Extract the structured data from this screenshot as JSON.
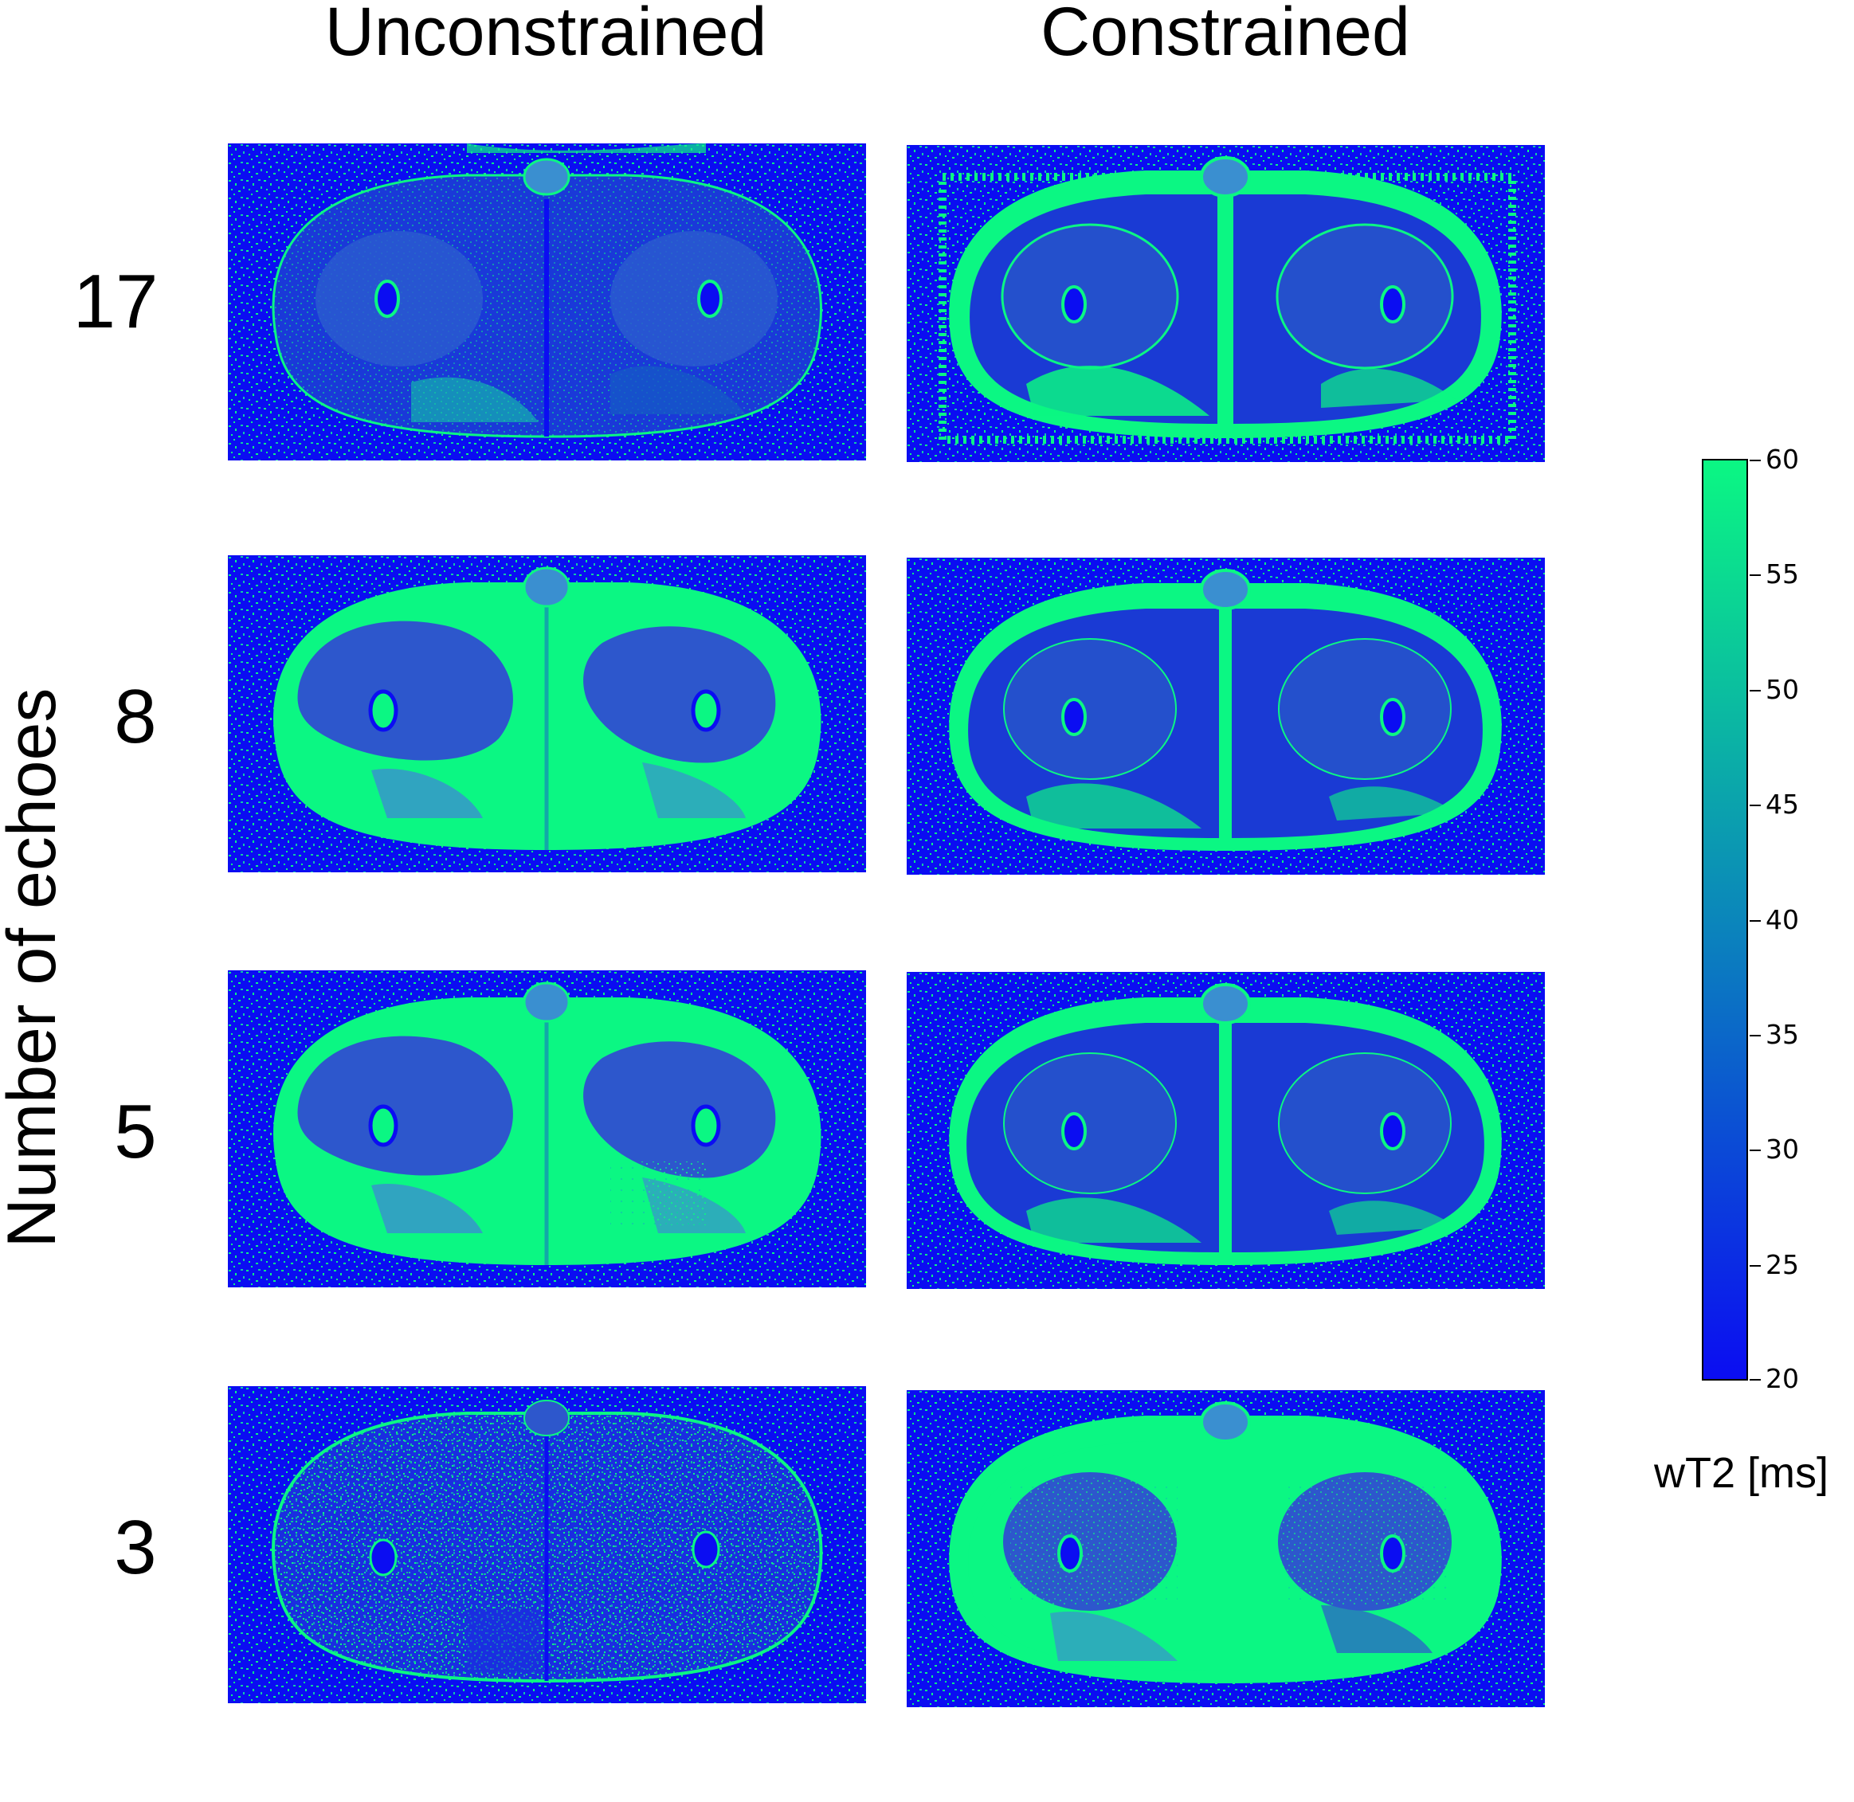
{
  "figure": {
    "columns": [
      "Unconstrained",
      "Constrained"
    ],
    "y_axis_label": "Number of echoes",
    "rows": [
      "17",
      "8",
      "5",
      "3"
    ],
    "colorbar": {
      "label": "wT2 [ms]",
      "min": 20,
      "max": 60,
      "ticks": [
        "60",
        "55",
        "50",
        "45",
        "40",
        "35",
        "30",
        "25",
        "20"
      ],
      "color_low": "#0b0df2",
      "color_high": "#0bf783"
    }
  }
}
